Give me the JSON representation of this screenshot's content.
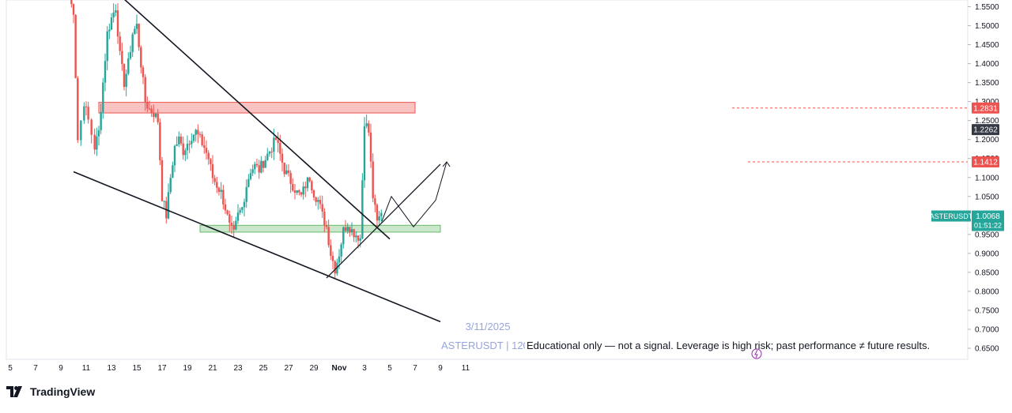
{
  "chart_data": {
    "type": "candlestick",
    "symbol_label": "ASTERUSDT",
    "watermark_date": "3/11/2025",
    "watermark_symbol": "ASTERUSDT | 120",
    "disclaimer": "Educational only — not a signal. Leverage is high risk; past performance ≠ future results.",
    "brand": "TradingView",
    "ylim": [
      0.62,
      1.57
    ],
    "y_ticks": [
      "1.5500",
      "1.5000",
      "1.4500",
      "1.4000",
      "1.3500",
      "1.3000",
      "1.2500",
      "1.2000",
      "1.1500",
      "1.1000",
      "1.0500",
      "1.0000",
      "0.9500",
      "0.9000",
      "0.8500",
      "0.8000",
      "0.7500",
      "0.7000",
      "0.6500"
    ],
    "x_ticks": [
      "5",
      "7",
      "9",
      "11",
      "13",
      "15",
      "17",
      "19",
      "21",
      "23",
      "25",
      "27",
      "29",
      "Nov",
      "3",
      "5",
      "7",
      "9",
      "11"
    ],
    "price_labels": [
      {
        "value": 1.2831,
        "text": "1.2831",
        "color": "#ef5350",
        "kind": "resistance"
      },
      {
        "value": 1.2262,
        "text": "1.2262",
        "color": "#363a45",
        "kind": "level"
      },
      {
        "value": 1.1412,
        "text": "1.1412",
        "color": "#ef5350",
        "kind": "target"
      }
    ],
    "current_price": {
      "value": 1.0068,
      "text": "1.0068",
      "countdown": "01:51:22",
      "color": "#26a69a"
    },
    "zones": [
      {
        "name": "resistance-zone",
        "x_start": "Oct 12",
        "x_end": "Nov 6",
        "y_low": 1.27,
        "y_high": 1.298,
        "color": "#ef5350"
      },
      {
        "name": "support-zone",
        "x_start": "Oct 20",
        "x_end": "Nov 8",
        "y_low": 0.956,
        "y_high": 0.974,
        "color": "#66bb6a"
      }
    ],
    "trendlines": [
      {
        "name": "falling-wedge-upper",
        "from": [
          "Oct 14",
          1.57
        ],
        "to": [
          "Nov 4",
          0.938
        ]
      },
      {
        "name": "falling-wedge-lower",
        "from": [
          "Oct 10",
          1.115
        ],
        "to": [
          "Nov 8",
          0.72
        ]
      },
      {
        "name": "rising-support",
        "from": [
          "Oct 30",
          0.835
        ],
        "to": [
          "Nov 8",
          1.135
        ]
      }
    ],
    "projection": [
      [
        "Nov 3",
        0.985
      ],
      [
        "Nov 3",
        1.05
      ],
      [
        "Nov 4",
        0.97
      ],
      [
        "Nov 5",
        1.04
      ],
      [
        "Nov 5",
        1.1412
      ]
    ],
    "closes": [
      [
        "Oct 10",
        1.57
      ],
      [
        "Oct 10",
        1.54
      ],
      [
        "Oct 10",
        1.2
      ],
      [
        "Oct 11",
        1.3
      ],
      [
        "Oct 11",
        1.25
      ],
      [
        "Oct 12",
        1.18
      ],
      [
        "Oct 12",
        1.22
      ],
      [
        "Oct 12",
        1.35
      ],
      [
        "Oct 13",
        1.48
      ],
      [
        "Oct 13",
        1.52
      ],
      [
        "Oct 13",
        1.55
      ],
      [
        "Oct 14",
        1.42
      ],
      [
        "Oct 14",
        1.35
      ],
      [
        "Oct 14",
        1.4
      ],
      [
        "Oct 15",
        1.48
      ],
      [
        "Oct 15",
        1.5
      ],
      [
        "Oct 15",
        1.4
      ],
      [
        "Oct 16",
        1.3
      ],
      [
        "Oct 16",
        1.28
      ],
      [
        "Oct 16",
        1.27
      ],
      [
        "Oct 17",
        1.25
      ],
      [
        "Oct 17",
        1.05
      ],
      [
        "Oct 17",
        1.0
      ],
      [
        "Oct 18",
        1.1
      ],
      [
        "Oct 18",
        1.18
      ],
      [
        "Oct 18",
        1.2
      ],
      [
        "Oct 19",
        1.17
      ],
      [
        "Oct 19",
        1.19
      ],
      [
        "Oct 19",
        1.21
      ],
      [
        "Oct 20",
        1.22
      ],
      [
        "Oct 20",
        1.2
      ],
      [
        "Oct 20",
        1.18
      ],
      [
        "Oct 21",
        1.15
      ],
      [
        "Oct 21",
        1.1
      ],
      [
        "Oct 21",
        1.08
      ],
      [
        "Oct 22",
        1.06
      ],
      [
        "Oct 22",
        1.02
      ],
      [
        "Oct 22",
        0.97
      ],
      [
        "Oct 23",
        0.95
      ],
      [
        "Oct 23",
        1.0
      ],
      [
        "Oct 23",
        1.02
      ],
      [
        "Oct 24",
        1.08
      ],
      [
        "Oct 24",
        1.12
      ],
      [
        "Oct 24",
        1.13
      ],
      [
        "Oct 25",
        1.12
      ],
      [
        "Oct 25",
        1.14
      ],
      [
        "Oct 25",
        1.16
      ],
      [
        "Oct 26",
        1.18
      ],
      [
        "Oct 26",
        1.2
      ],
      [
        "Oct 26",
        1.16
      ],
      [
        "Oct 27",
        1.12
      ],
      [
        "Oct 27",
        1.1
      ],
      [
        "Oct 27",
        1.08
      ],
      [
        "Oct 28",
        1.06
      ],
      [
        "Oct 28",
        1.05
      ],
      [
        "Oct 28",
        1.08
      ],
      [
        "Oct 29",
        1.1
      ],
      [
        "Oct 29",
        1.06
      ],
      [
        "Oct 29",
        1.04
      ],
      [
        "Oct 30",
        1.0
      ],
      [
        "Oct 30",
        0.97
      ],
      [
        "Oct 30",
        0.9
      ],
      [
        "Oct 31",
        0.86
      ],
      [
        "Oct 31",
        0.9
      ],
      [
        "Oct 31",
        0.96
      ],
      [
        "Nov 1",
        0.98
      ],
      [
        "Nov 1",
        0.96
      ],
      [
        "Nov 1",
        0.95
      ],
      [
        "Nov 2",
        0.94
      ],
      [
        "Nov 2",
        1.25
      ],
      [
        "Nov 2",
        1.22
      ],
      [
        "Nov 3",
        1.05
      ],
      [
        "Nov 3",
        0.98
      ],
      [
        "Nov 3",
        1.0068
      ]
    ]
  }
}
